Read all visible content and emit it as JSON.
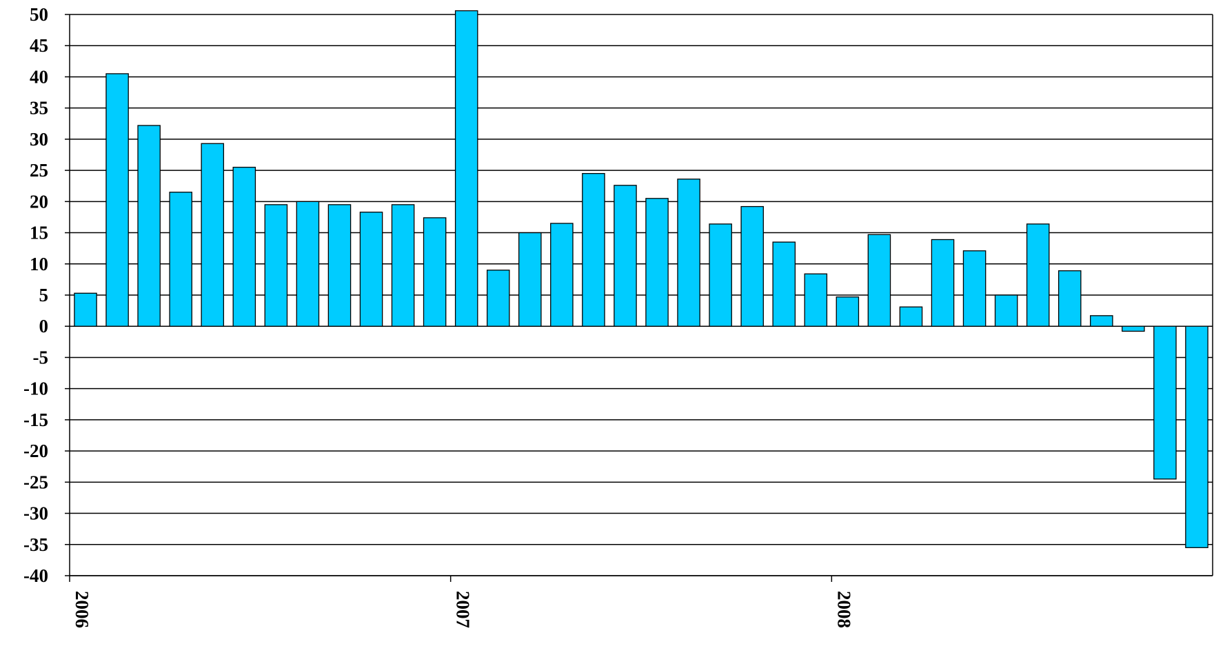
{
  "chart_data": {
    "type": "bar",
    "title": "",
    "xlabel": "",
    "ylabel": "",
    "ylim": [
      -40,
      50
    ],
    "y_ticks": [
      "50",
      "45",
      "40",
      "35",
      "30",
      "25",
      "20",
      "15",
      "10",
      "5",
      "0",
      "-5",
      "-10",
      "-15",
      "-20",
      "-25",
      "-30",
      "-35",
      "-40"
    ],
    "y_tick_values": [
      50,
      45,
      40,
      35,
      30,
      25,
      20,
      15,
      10,
      5,
      0,
      -5,
      -10,
      -15,
      -20,
      -25,
      -30,
      -35,
      -40
    ],
    "x_tick_labels": [
      "2006",
      "2007",
      "2008"
    ],
    "x_tick_positions": [
      0,
      12,
      24
    ],
    "grid": true,
    "bar_color": "#00CCFF",
    "series": [
      {
        "values": [
          5.3,
          40.5,
          32.2,
          21.5,
          29.3,
          25.5,
          19.5,
          20.0,
          19.5,
          18.3,
          19.5,
          17.4,
          50.9,
          9.0,
          15.0,
          16.5,
          24.5,
          22.6,
          20.5,
          23.6,
          16.4,
          19.2,
          13.5,
          8.4,
          4.7,
          14.7,
          3.1,
          13.9,
          12.1,
          5.0,
          16.4,
          8.9,
          1.7,
          -0.8,
          -24.5,
          -35.5
        ]
      }
    ]
  }
}
